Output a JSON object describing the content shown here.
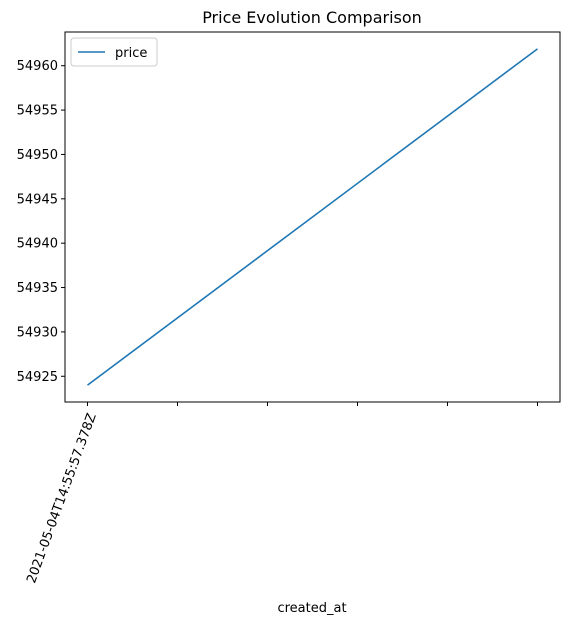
{
  "chart_data": {
    "type": "line",
    "title": "Price Evolution Comparison",
    "xlabel": "created_at",
    "ylabel": "",
    "x_tick_labels": [
      "2021-05-04T14:55:57.378Z",
      "",
      "",
      "",
      "",
      ""
    ],
    "y_ticks": [
      54925,
      54930,
      54935,
      54940,
      54945,
      54950,
      54955,
      54960
    ],
    "ylim": [
      54922.1,
      54963.8
    ],
    "xlim": [
      -0.25,
      5.25
    ],
    "grid": false,
    "legend_position": "top-left",
    "series": [
      {
        "name": "price",
        "color": "#1f77b4",
        "x": [
          0,
          5
        ],
        "y": [
          54924.0,
          54961.9
        ]
      }
    ]
  }
}
